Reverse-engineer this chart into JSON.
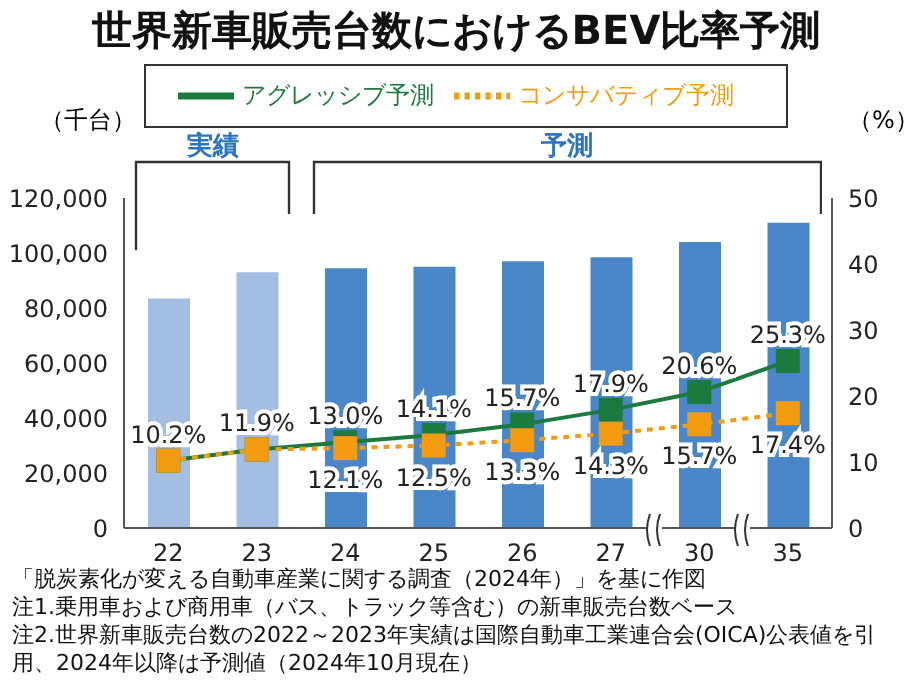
{
  "chart_data": {
    "type": "bar",
    "title": "世界新車販売台数におけるBEV比率予測",
    "categories": [
      "22",
      "23",
      "24",
      "25",
      "26",
      "27",
      "30",
      "35"
    ],
    "ylabel": "（千台）",
    "y2label": "（%）",
    "series": [
      {
        "colors": [
          "#a3bde3",
          "#a3bde3",
          "#4a87c9",
          "#4a87c9",
          "#4a87c9",
          "#4a87c9",
          "#4a87c9",
          "#4a87c9"
        ],
        "values": [
          83500,
          93000,
          94500,
          95000,
          97000,
          98500,
          104000,
          111000
        ]
      },
      {
        "type": "line",
        "name": "アグレッシブ予測",
        "axis": "y2",
        "color": "#1b7a3e",
        "line_style": "solid",
        "values": [
          10.2,
          11.9,
          13.0,
          14.1,
          15.7,
          17.9,
          20.6,
          25.3
        ],
        "value_labels": [
          "10.2%",
          "11.9%",
          "13.0%",
          "14.1%",
          "15.7%",
          "17.9%",
          "20.6%",
          "25.3%"
        ]
      },
      {
        "type": "line",
        "name": "コンサバティブ予測",
        "axis": "y2",
        "color": "#f39c12",
        "line_style": "dotted",
        "values": [
          10.2,
          11.9,
          12.1,
          12.5,
          13.3,
          14.3,
          15.7,
          17.4
        ],
        "value_labels": [
          null,
          null,
          "12.1%",
          "12.5%",
          "13.3%",
          "14.3%",
          "15.7%",
          "17.4%"
        ]
      }
    ],
    "ylim": [
      0,
      120000
    ],
    "yticks": [
      0,
      {
        "value": 20000,
        "label": "20,000"
      },
      {
        "value": 40000,
        "label": "40,000"
      },
      {
        "value": 60000,
        "label": "60,000"
      },
      {
        "value": 80000,
        "label": "80,000"
      },
      {
        "value": 100000,
        "label": "100,000"
      },
      {
        "value": 120000,
        "label": "120,000"
      }
    ],
    "y2lim": [
      0,
      50
    ],
    "y2ticks": [
      0,
      10,
      20,
      30,
      40,
      50
    ],
    "marker": "square",
    "grid": false,
    "legend": "top",
    "annotations": [
      "実績",
      "予測",
      "「脱炭素化が変える自動車産業に関する調査（2024年）」を基に作図",
      "注1.乗用車および商用車（バス、トラック等含む）の新車販売台数ベース",
      "注2.世界新車販売台数の2022～2023年実績は国際自動車工業連合会(OICA)公表値を引用、2024年以降は予測値（2024年10月現在）"
    ]
  }
}
